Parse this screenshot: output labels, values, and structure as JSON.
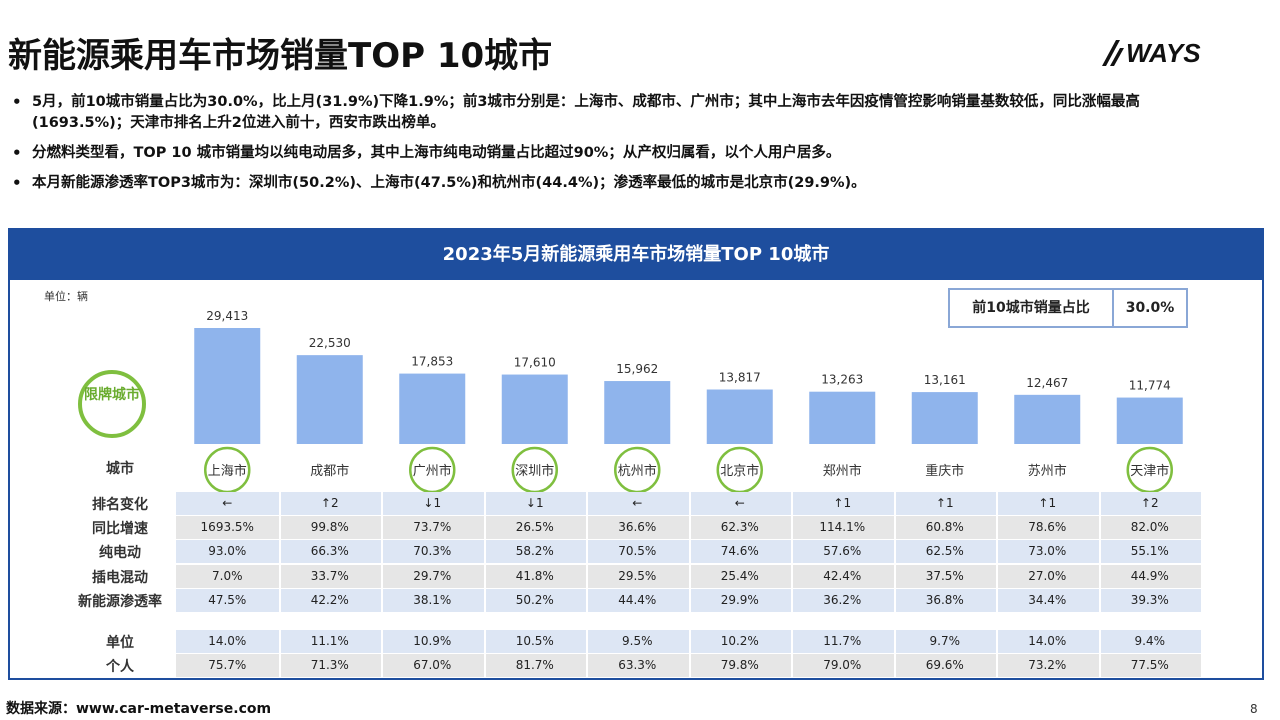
{
  "title": "新能源乘用车市场销量TOP 10城市",
  "logo": "WAYS",
  "bullets": [
    "5月，前10城市销量占比为30.0%，比上月(31.9%)下降1.9%；前3城市分别是：上海市、成都市、广州市；其中上海市去年因疫情管控影响销量基数较低，同比涨幅最高(1693.5%)；天津市排名上升2位进入前十，西安市跌出榜单。",
    "分燃料类型看，TOP 10 城市销量均以纯电动居多，其中上海市纯电动销量占比超过90%；从产权归属看，以个人用户居多。",
    "本月新能源渗透率TOP3城市为：深圳市(50.2%)、上海市(47.5%)和杭州市(44.4%)；渗透率最低的城市是北京市(29.9%)。"
  ],
  "panel": {
    "header": "2023年5月新能源乘用车市场销量TOP 10城市",
    "unit": "单位：辆",
    "share_label": "前10城市销量占比",
    "share_value": "30.0%",
    "badge": "限牌城市"
  },
  "colors": {
    "header_blue": "#1e4e9e",
    "bar": "#8fb4ec",
    "ring": "#7fbf3f",
    "band": "#dde6f4"
  },
  "chart_data": {
    "type": "bar",
    "categories": [
      "上海市",
      "成都市",
      "广州市",
      "深圳市",
      "杭州市",
      "北京市",
      "郑州市",
      "重庆市",
      "苏州市",
      "天津市"
    ],
    "values": [
      29413,
      22530,
      17853,
      17610,
      15962,
      13817,
      13263,
      13161,
      12467,
      11774
    ],
    "value_labels": [
      "29,413",
      "22,530",
      "17,853",
      "17,610",
      "15,962",
      "13,817",
      "13,263",
      "13,161",
      "12,467",
      "11,774"
    ],
    "restricted": [
      true,
      false,
      true,
      true,
      true,
      true,
      false,
      false,
      false,
      true
    ],
    "title": "2023年5月新能源乘用车市场销量TOP 10城市",
    "ylabel": "单位：辆"
  },
  "table": {
    "city_label": "城市",
    "rows": [
      {
        "label": "排名变化",
        "values": [
          "←",
          "↑2",
          "↓1",
          "↓1",
          "←",
          "←",
          "↑1",
          "↑1",
          "↑1",
          "↑2"
        ]
      },
      {
        "label": "同比增速",
        "values": [
          "1693.5%",
          "99.8%",
          "73.7%",
          "26.5%",
          "36.6%",
          "62.3%",
          "114.1%",
          "60.8%",
          "78.6%",
          "82.0%"
        ]
      },
      {
        "label": "纯电动",
        "values": [
          "93.0%",
          "66.3%",
          "70.3%",
          "58.2%",
          "70.5%",
          "74.6%",
          "57.6%",
          "62.5%",
          "73.0%",
          "55.1%"
        ]
      },
      {
        "label": "插电混动",
        "values": [
          "7.0%",
          "33.7%",
          "29.7%",
          "41.8%",
          "29.5%",
          "25.4%",
          "42.4%",
          "37.5%",
          "27.0%",
          "44.9%"
        ]
      },
      {
        "label": "新能源渗透率",
        "values": [
          "47.5%",
          "42.2%",
          "38.1%",
          "50.2%",
          "44.4%",
          "29.9%",
          "36.2%",
          "36.8%",
          "34.4%",
          "39.3%"
        ]
      }
    ],
    "rows2": [
      {
        "label": "单位",
        "values": [
          "14.0%",
          "11.1%",
          "10.9%",
          "10.5%",
          "9.5%",
          "10.2%",
          "11.7%",
          "9.7%",
          "14.0%",
          "9.4%"
        ]
      },
      {
        "label": "个人",
        "values": [
          "75.7%",
          "71.3%",
          "67.0%",
          "81.7%",
          "63.3%",
          "79.8%",
          "79.0%",
          "69.6%",
          "73.2%",
          "77.5%"
        ]
      }
    ]
  },
  "source": "数据来源：www.car-metaverse.com",
  "page_number": "8"
}
